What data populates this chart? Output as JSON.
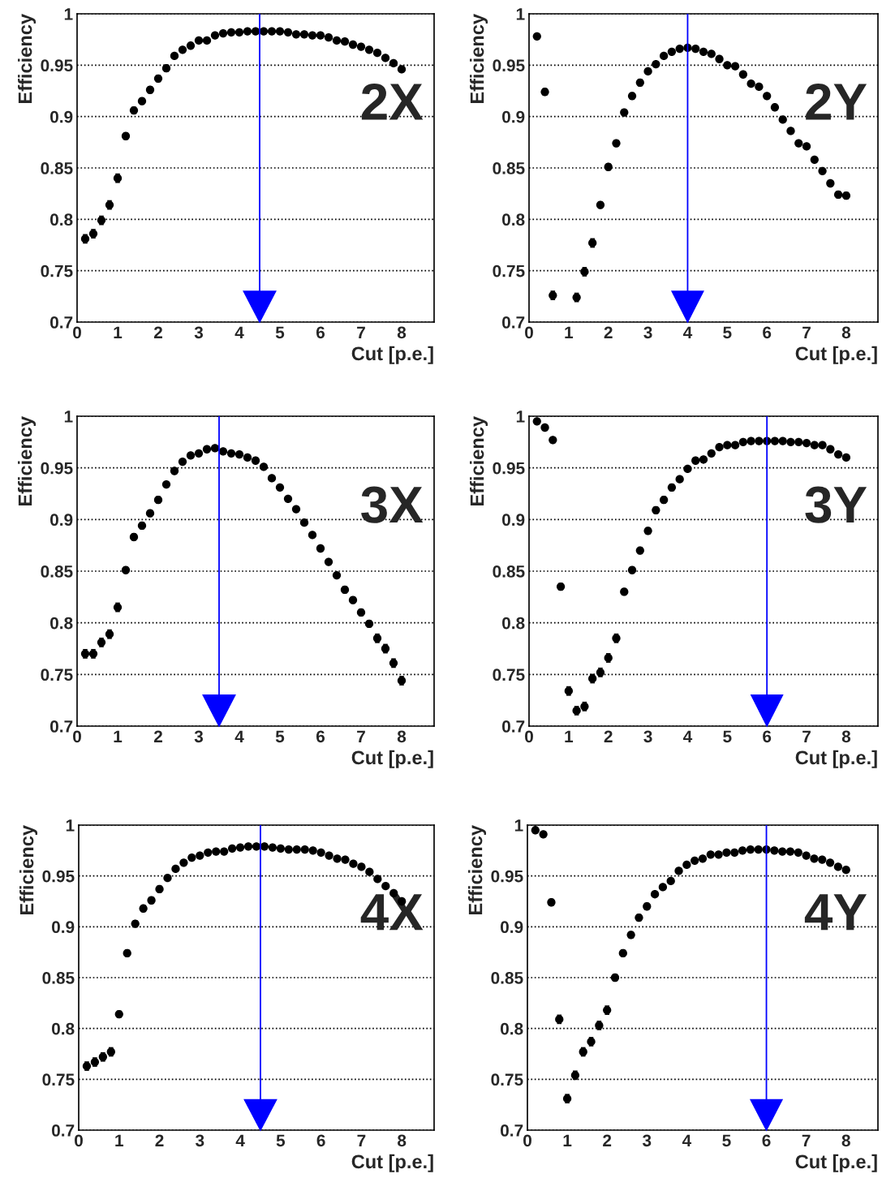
{
  "chart_data": [
    {
      "type": "scatter",
      "xlabel": "Cut [p.e.]",
      "ylabel": "Efficiency",
      "annotations": [
        "2X"
      ],
      "xlim": [
        0,
        8.8
      ],
      "ylim": [
        0.7,
        1
      ],
      "xticks": [
        0,
        1,
        2,
        3,
        4,
        5,
        6,
        7,
        8
      ],
      "yticks": [
        0.7,
        0.75,
        0.8,
        0.85,
        0.9,
        0.95,
        1
      ],
      "grid": "y",
      "marker": "circle",
      "x": [
        0.2,
        0.4,
        0.6,
        0.8,
        1.0,
        1.2,
        1.4,
        1.6,
        1.8,
        2.0,
        2.2,
        2.4,
        2.6,
        2.8,
        3.0,
        3.2,
        3.4,
        3.6,
        3.8,
        4.0,
        4.2,
        4.4,
        4.6,
        4.8,
        5.0,
        5.2,
        5.4,
        5.6,
        5.8,
        6.0,
        6.2,
        6.4,
        6.6,
        6.8,
        7.0,
        7.2,
        7.4,
        7.6,
        7.8,
        8.0
      ],
      "ref_lines": [
        {
          "axis": "x",
          "value": 4.5,
          "color": "#0000ff"
        }
      ],
      "series": [
        {
          "color": "#000000",
          "values": [
            0.781,
            0.786,
            0.799,
            0.814,
            0.84,
            0.881,
            0.906,
            0.915,
            0.926,
            0.937,
            0.947,
            0.959,
            0.965,
            0.969,
            0.974,
            0.974,
            0.979,
            0.981,
            0.982,
            0.982,
            0.983,
            0.983,
            0.983,
            0.983,
            0.983,
            0.982,
            0.98,
            0.98,
            0.979,
            0.979,
            0.977,
            0.974,
            0.973,
            0.97,
            0.968,
            0.965,
            0.962,
            0.957,
            0.952,
            0.946
          ],
          "errors": [
            0.004,
            0.004,
            0.004,
            0.004,
            0.004,
            0.003,
            0.003,
            0.003,
            0.003,
            0.003,
            0.003,
            null,
            null,
            null,
            null,
            null,
            null,
            null,
            null,
            null,
            null,
            null,
            null,
            null,
            null,
            null,
            null,
            null,
            null,
            null,
            null,
            null,
            null,
            null,
            null,
            null,
            null,
            null,
            null,
            null
          ]
        }
      ]
    },
    {
      "type": "scatter",
      "xlabel": "Cut [p.e.]",
      "ylabel": "Efficiency",
      "annotations": [
        "2Y"
      ],
      "xlim": [
        0,
        8.8
      ],
      "ylim": [
        0.7,
        1
      ],
      "xticks": [
        0,
        1,
        2,
        3,
        4,
        5,
        6,
        7,
        8
      ],
      "yticks": [
        0.7,
        0.75,
        0.8,
        0.85,
        0.9,
        0.95,
        1
      ],
      "grid": "y",
      "marker": "circle",
      "x": [
        0.2,
        0.4,
        0.6,
        0.8,
        1.0,
        1.2,
        1.4,
        1.6,
        1.8,
        2.0,
        2.2,
        2.4,
        2.6,
        2.8,
        3.0,
        3.2,
        3.4,
        3.6,
        3.8,
        4.0,
        4.2,
        4.4,
        4.6,
        4.8,
        5.0,
        5.2,
        5.4,
        5.6,
        5.8,
        6.0,
        6.2,
        6.4,
        6.6,
        6.8,
        7.0,
        7.2,
        7.4,
        7.6,
        7.8,
        8.0
      ],
      "ref_lines": [
        {
          "axis": "x",
          "value": 4,
          "color": "#0000ff"
        }
      ],
      "series": [
        {
          "color": "#000000",
          "values": [
            0.978,
            0.924,
            0.726,
            null,
            null,
            0.724,
            0.749,
            0.777,
            0.814,
            0.851,
            0.874,
            0.904,
            0.92,
            0.933,
            0.944,
            0.951,
            0.959,
            0.963,
            0.966,
            0.967,
            0.966,
            0.963,
            0.961,
            0.956,
            0.95,
            0.949,
            0.941,
            0.932,
            0.929,
            0.92,
            0.909,
            0.897,
            0.886,
            0.874,
            0.871,
            0.858,
            0.847,
            0.835,
            0.824,
            0.823
          ],
          "errors": [
            null,
            0.003,
            0.004,
            null,
            null,
            0.004,
            0.004,
            0.004,
            0.003,
            0.003,
            0.003,
            0.003,
            0.003,
            0.003,
            null,
            null,
            null,
            null,
            null,
            null,
            null,
            null,
            null,
            null,
            null,
            null,
            null,
            null,
            null,
            null,
            null,
            null,
            null,
            null,
            null,
            null,
            null,
            null,
            0.003,
            0.003
          ]
        }
      ]
    },
    {
      "type": "scatter",
      "xlabel": "Cut [p.e.]",
      "ylabel": "Efficiency",
      "annotations": [
        "3X"
      ],
      "xlim": [
        0,
        8.8
      ],
      "ylim": [
        0.7,
        1
      ],
      "xticks": [
        0,
        1,
        2,
        3,
        4,
        5,
        6,
        7,
        8
      ],
      "yticks": [
        0.7,
        0.75,
        0.8,
        0.85,
        0.9,
        0.95,
        1
      ],
      "grid": "y",
      "marker": "circle",
      "x": [
        0.2,
        0.4,
        0.6,
        0.8,
        1.0,
        1.2,
        1.4,
        1.6,
        1.8,
        2.0,
        2.2,
        2.4,
        2.6,
        2.8,
        3.0,
        3.2,
        3.4,
        3.6,
        3.8,
        4.0,
        4.2,
        4.4,
        4.6,
        4.8,
        5.0,
        5.2,
        5.4,
        5.6,
        5.8,
        6.0,
        6.2,
        6.4,
        6.6,
        6.8,
        7.0,
        7.2,
        7.4,
        7.6,
        7.8,
        8.0
      ],
      "ref_lines": [
        {
          "axis": "x",
          "value": 3.5,
          "color": "#0000ff"
        }
      ],
      "series": [
        {
          "color": "#000000",
          "values": [
            0.77,
            0.77,
            0.781,
            0.789,
            0.815,
            0.851,
            0.883,
            0.894,
            0.906,
            0.919,
            0.934,
            0.947,
            0.956,
            0.962,
            0.964,
            0.968,
            0.969,
            0.966,
            0.964,
            0.963,
            0.96,
            0.957,
            0.951,
            0.94,
            0.931,
            0.92,
            0.91,
            0.897,
            0.885,
            0.872,
            0.859,
            0.846,
            0.832,
            0.822,
            0.81,
            0.799,
            0.785,
            0.775,
            0.761,
            0.744
          ],
          "errors": [
            0.004,
            0.004,
            0.004,
            0.004,
            0.004,
            0.003,
            0.003,
            0.003,
            0.003,
            0.003,
            null,
            null,
            null,
            null,
            null,
            null,
            null,
            null,
            null,
            null,
            null,
            null,
            null,
            null,
            null,
            null,
            null,
            null,
            null,
            null,
            null,
            null,
            0.003,
            0.003,
            0.003,
            0.003,
            0.004,
            0.004,
            0.004,
            0.004
          ]
        }
      ]
    },
    {
      "type": "scatter",
      "xlabel": "Cut [p.e.]",
      "ylabel": "Efficiency",
      "annotations": [
        "3Y"
      ],
      "xlim": [
        0,
        8.8
      ],
      "ylim": [
        0.7,
        1
      ],
      "xticks": [
        0,
        1,
        2,
        3,
        4,
        5,
        6,
        7,
        8
      ],
      "yticks": [
        0.7,
        0.75,
        0.8,
        0.85,
        0.9,
        0.95,
        1
      ],
      "grid": "y",
      "marker": "circle",
      "x": [
        0.2,
        0.4,
        0.6,
        0.8,
        1.0,
        1.2,
        1.4,
        1.6,
        1.8,
        2.0,
        2.2,
        2.4,
        2.6,
        2.8,
        3.0,
        3.2,
        3.4,
        3.6,
        3.8,
        4.0,
        4.2,
        4.4,
        4.6,
        4.8,
        5.0,
        5.2,
        5.4,
        5.6,
        5.8,
        6.0,
        6.2,
        6.4,
        6.6,
        6.8,
        7.0,
        7.2,
        7.4,
        7.6,
        7.8,
        8.0
      ],
      "ref_lines": [
        {
          "axis": "x",
          "value": 6,
          "color": "#0000ff"
        }
      ],
      "series": [
        {
          "color": "#000000",
          "values": [
            0.995,
            0.989,
            0.977,
            0.835,
            0.734,
            0.715,
            0.719,
            0.746,
            0.752,
            0.766,
            0.785,
            0.83,
            0.851,
            0.87,
            0.889,
            0.909,
            0.919,
            0.931,
            0.939,
            0.949,
            0.957,
            0.958,
            0.964,
            0.97,
            0.972,
            0.972,
            0.975,
            0.976,
            0.976,
            0.976,
            0.976,
            0.976,
            0.975,
            0.975,
            0.974,
            0.972,
            0.972,
            0.968,
            0.963,
            0.96
          ],
          "errors": [
            null,
            null,
            null,
            0.003,
            0.004,
            0.004,
            0.004,
            0.004,
            0.004,
            0.004,
            0.004,
            0.003,
            0.003,
            0.003,
            0.003,
            0.003,
            0.003,
            0.003,
            null,
            null,
            null,
            null,
            null,
            null,
            null,
            null,
            null,
            null,
            null,
            null,
            null,
            null,
            null,
            null,
            null,
            null,
            null,
            null,
            null,
            null
          ]
        }
      ]
    },
    {
      "type": "scatter",
      "xlabel": "Cut [p.e.]",
      "ylabel": "Efficiency",
      "annotations": [
        "4X"
      ],
      "xlim": [
        0,
        8.8
      ],
      "ylim": [
        0.7,
        1
      ],
      "xticks": [
        0,
        1,
        2,
        3,
        4,
        5,
        6,
        7,
        8
      ],
      "yticks": [
        0.7,
        0.75,
        0.8,
        0.85,
        0.9,
        0.95,
        1
      ],
      "grid": "y",
      "marker": "circle",
      "x": [
        0.2,
        0.4,
        0.6,
        0.8,
        1.0,
        1.2,
        1.4,
        1.6,
        1.8,
        2.0,
        2.2,
        2.4,
        2.6,
        2.8,
        3.0,
        3.2,
        3.4,
        3.6,
        3.8,
        4.0,
        4.2,
        4.4,
        4.6,
        4.8,
        5.0,
        5.2,
        5.4,
        5.6,
        5.8,
        6.0,
        6.2,
        6.4,
        6.6,
        6.8,
        7.0,
        7.2,
        7.4,
        7.6,
        7.8,
        8.0
      ],
      "ref_lines": [
        {
          "axis": "x",
          "value": 4.5,
          "color": "#0000ff"
        }
      ],
      "series": [
        {
          "color": "#000000",
          "values": [
            0.763,
            0.767,
            0.772,
            0.777,
            0.814,
            0.874,
            0.903,
            0.918,
            0.926,
            0.937,
            0.948,
            0.957,
            0.963,
            0.968,
            0.97,
            0.973,
            0.974,
            0.974,
            0.977,
            0.978,
            0.979,
            0.979,
            0.979,
            0.978,
            0.977,
            0.976,
            0.976,
            0.976,
            0.975,
            0.973,
            0.97,
            0.967,
            0.966,
            0.962,
            0.959,
            0.954,
            0.947,
            0.94,
            0.933,
            0.925
          ],
          "errors": [
            0.004,
            0.004,
            0.004,
            0.004,
            0.003,
            0.003,
            0.003,
            0.003,
            0.003,
            0.003,
            null,
            null,
            null,
            null,
            null,
            null,
            null,
            null,
            null,
            null,
            null,
            null,
            null,
            null,
            null,
            null,
            null,
            null,
            null,
            null,
            null,
            null,
            null,
            null,
            null,
            null,
            null,
            null,
            null,
            null
          ]
        }
      ]
    },
    {
      "type": "scatter",
      "xlabel": "Cut [p.e.]",
      "ylabel": "Efficiency",
      "annotations": [
        "4Y"
      ],
      "xlim": [
        0,
        8.8
      ],
      "ylim": [
        0.7,
        1
      ],
      "xticks": [
        0,
        1,
        2,
        3,
        4,
        5,
        6,
        7,
        8
      ],
      "yticks": [
        0.7,
        0.75,
        0.8,
        0.85,
        0.9,
        0.95,
        1
      ],
      "grid": "y",
      "marker": "circle",
      "x": [
        0.2,
        0.4,
        0.6,
        0.8,
        1.0,
        1.2,
        1.4,
        1.6,
        1.8,
        2.0,
        2.2,
        2.4,
        2.6,
        2.8,
        3.0,
        3.2,
        3.4,
        3.6,
        3.8,
        4.0,
        4.2,
        4.4,
        4.6,
        4.8,
        5.0,
        5.2,
        5.4,
        5.6,
        5.8,
        6.0,
        6.2,
        6.4,
        6.6,
        6.8,
        7.0,
        7.2,
        7.4,
        7.6,
        7.8,
        8.0
      ],
      "ref_lines": [
        {
          "axis": "x",
          "value": 6,
          "color": "#0000ff"
        }
      ],
      "series": [
        {
          "color": "#000000",
          "values": [
            0.995,
            0.991,
            0.924,
            0.809,
            0.731,
            0.754,
            0.777,
            0.787,
            0.803,
            0.818,
            0.85,
            0.874,
            0.892,
            0.909,
            0.92,
            0.932,
            0.939,
            0.945,
            0.955,
            0.961,
            0.965,
            0.967,
            0.971,
            0.971,
            0.973,
            0.973,
            0.975,
            0.976,
            0.976,
            0.976,
            0.975,
            0.974,
            0.974,
            0.973,
            0.97,
            0.967,
            0.966,
            0.963,
            0.959,
            0.956
          ],
          "errors": [
            null,
            null,
            0.003,
            0.004,
            0.004,
            0.004,
            0.004,
            0.004,
            0.004,
            0.004,
            0.003,
            0.003,
            0.003,
            0.003,
            0.003,
            null,
            null,
            null,
            null,
            null,
            null,
            null,
            null,
            null,
            null,
            null,
            null,
            null,
            null,
            null,
            null,
            null,
            null,
            null,
            null,
            null,
            null,
            null,
            null,
            null
          ]
        }
      ]
    }
  ]
}
